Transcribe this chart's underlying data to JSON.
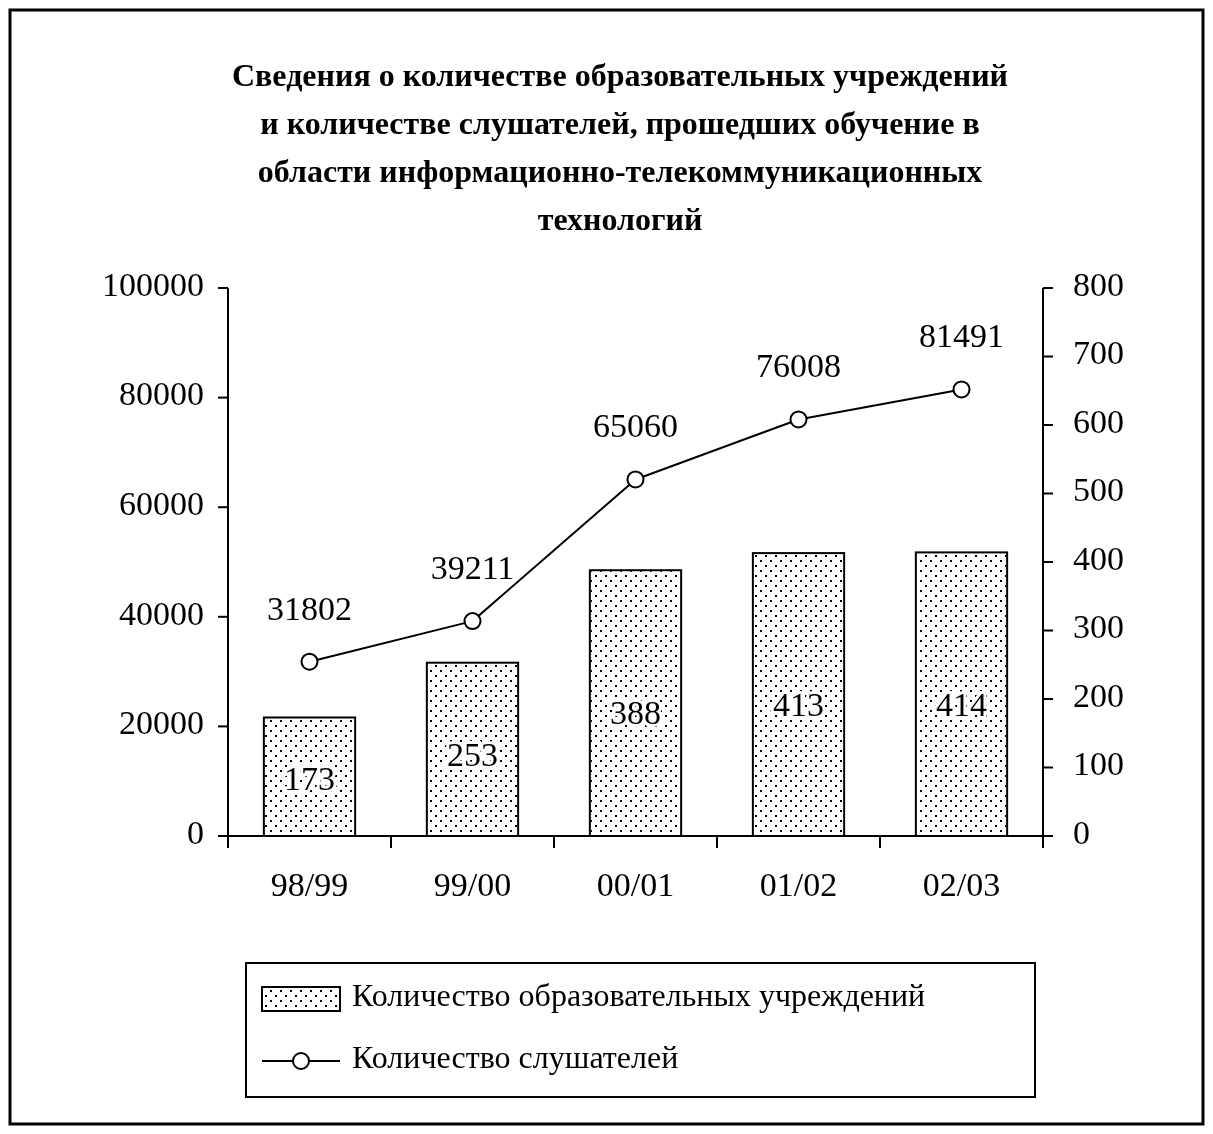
{
  "chart_data": {
    "type": "bar",
    "title": "Сведения о количестве образовательных учреждений\nи количестве слушателей, прошедших обучение в\nобласти информационно-телекоммуникационных\nтехнологий",
    "categories": [
      "98/99",
      "99/00",
      "00/01",
      "01/02",
      "02/03"
    ],
    "series": [
      {
        "name": "Количество образовательных учреждений",
        "axis": "y2",
        "color": "#ffffff",
        "values": [
          173,
          253,
          388,
          413,
          414
        ]
      },
      {
        "name": "Количество слушателей",
        "type": "line",
        "axis": "y",
        "color": "#000000",
        "marker": "circle",
        "values": [
          31802,
          39211,
          65060,
          76008,
          81491
        ]
      }
    ],
    "ylim": [
      0,
      100000
    ],
    "yticks": [
      0,
      20000,
      40000,
      60000,
      80000,
      100000
    ],
    "y2lim": [
      0,
      800
    ],
    "y2ticks": [
      0,
      100,
      200,
      300,
      400,
      500,
      600,
      700,
      800
    ],
    "data_labels": true,
    "legend": "bottom",
    "grid": false
  }
}
